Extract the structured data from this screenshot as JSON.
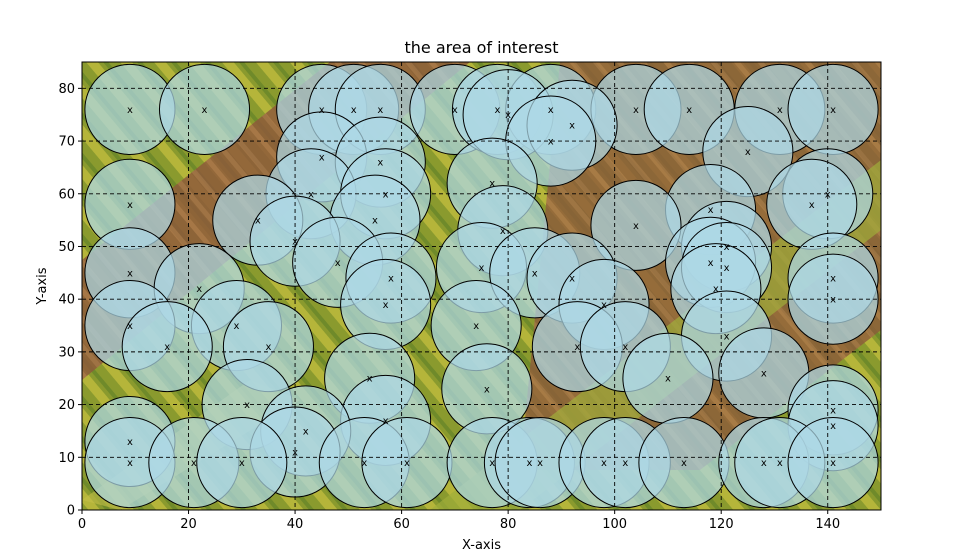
{
  "chart_data": {
    "type": "scatter",
    "title": "the area of interest",
    "xlabel": "X-axis",
    "ylabel": "Y-axis",
    "xlim": [
      0,
      150
    ],
    "ylim": [
      0,
      85
    ],
    "xticks": [
      0,
      20,
      40,
      60,
      80,
      100,
      120,
      140
    ],
    "yticks": [
      0,
      10,
      20,
      30,
      40,
      50,
      60,
      70,
      80
    ],
    "grid": true,
    "grid_style": "dashed",
    "background": "aerial photograph of farmland",
    "marker_label": "x",
    "circle_radius": 8.5,
    "circle_color": "#add8e6",
    "circle_edge_color": "#000000",
    "points": [
      [
        9,
        76
      ],
      [
        23,
        76
      ],
      [
        45,
        76
      ],
      [
        51,
        76
      ],
      [
        56,
        76
      ],
      [
        70,
        76
      ],
      [
        78,
        76
      ],
      [
        88,
        76
      ],
      [
        104,
        76
      ],
      [
        114,
        76
      ],
      [
        131,
        76
      ],
      [
        141,
        76
      ],
      [
        80,
        75
      ],
      [
        92,
        73
      ],
      [
        88,
        70
      ],
      [
        45,
        67
      ],
      [
        56,
        66
      ],
      [
        125,
        68
      ],
      [
        77,
        62
      ],
      [
        9,
        58
      ],
      [
        43,
        60
      ],
      [
        57,
        60
      ],
      [
        140,
        60
      ],
      [
        137,
        58
      ],
      [
        118,
        57
      ],
      [
        33,
        55
      ],
      [
        55,
        55
      ],
      [
        104,
        54
      ],
      [
        79,
        53
      ],
      [
        40,
        51
      ],
      [
        121,
        50
      ],
      [
        48,
        47
      ],
      [
        118,
        47
      ],
      [
        75,
        46
      ],
      [
        85,
        45
      ],
      [
        121,
        46
      ],
      [
        9,
        45
      ],
      [
        141,
        44
      ],
      [
        58,
        44
      ],
      [
        92,
        44
      ],
      [
        22,
        42
      ],
      [
        119,
        42
      ],
      [
        57,
        39
      ],
      [
        98,
        39
      ],
      [
        141,
        40
      ],
      [
        9,
        35
      ],
      [
        29,
        35
      ],
      [
        74,
        35
      ],
      [
        121,
        33
      ],
      [
        16,
        31
      ],
      [
        35,
        31
      ],
      [
        93,
        31
      ],
      [
        102,
        31
      ],
      [
        128,
        26
      ],
      [
        54,
        25
      ],
      [
        110,
        25
      ],
      [
        76,
        23
      ],
      [
        31,
        20
      ],
      [
        141,
        19
      ],
      [
        57,
        17
      ],
      [
        141,
        16
      ],
      [
        42,
        15
      ],
      [
        9,
        13
      ],
      [
        40,
        11
      ],
      [
        9,
        9
      ],
      [
        21,
        9
      ],
      [
        30,
        9
      ],
      [
        53,
        9
      ],
      [
        61,
        9
      ],
      [
        77,
        9
      ],
      [
        84,
        9
      ],
      [
        86,
        9
      ],
      [
        98,
        9
      ],
      [
        102,
        9
      ],
      [
        113,
        9
      ],
      [
        128,
        9
      ],
      [
        131,
        9
      ],
      [
        141,
        9
      ]
    ]
  }
}
